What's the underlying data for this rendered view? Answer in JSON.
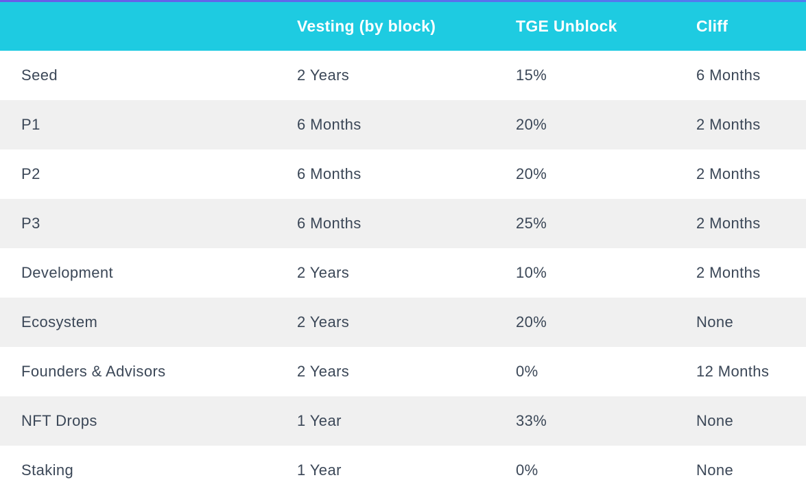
{
  "table": {
    "header": [
      "Vesting (by block)",
      "TGE Unblock",
      "Cliff"
    ],
    "rows": [
      [
        "Seed",
        "2 Years",
        "15%",
        "6 Months"
      ],
      [
        "P1",
        "6 Months",
        "20%",
        "2 Months"
      ],
      [
        "P2",
        "6 Months",
        "20%",
        "2 Months"
      ],
      [
        "P3",
        "6 Months",
        "25%",
        "2 Months"
      ],
      [
        "Development",
        "2 Years",
        "10%",
        "2 Months"
      ],
      [
        "Ecosystem",
        "2 Years",
        "20%",
        "None"
      ],
      [
        "Founders & Advisors",
        "2 Years",
        "0%",
        "12 Months"
      ],
      [
        "NFT Drops",
        "1 Year",
        "33%",
        "None"
      ],
      [
        "Staking",
        "1 Year",
        "0%",
        "None"
      ]
    ]
  }
}
